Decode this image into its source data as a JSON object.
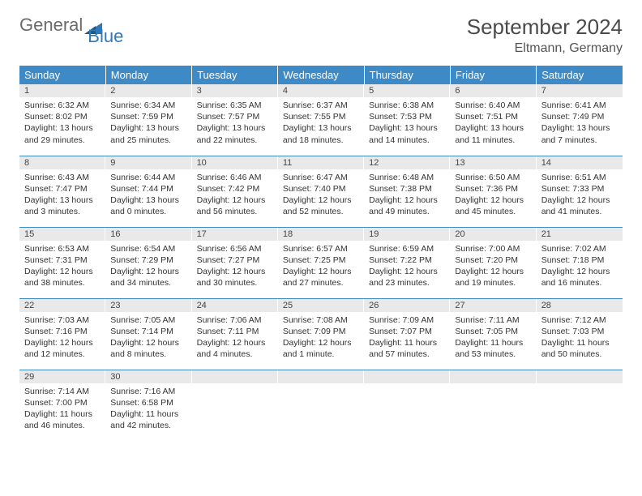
{
  "logo": {
    "part1": "General",
    "part2": "Blue"
  },
  "header": {
    "month_title": "September 2024",
    "location": "Eltmann, Germany"
  },
  "colors": {
    "header_bg": "#3e8ac6",
    "header_text": "#ffffff",
    "daynum_bg": "#e9e9e9",
    "row_divider": "#3e8ac6",
    "logo_blue": "#2f79b9",
    "logo_gray": "#6b6b6b",
    "body_text": "#333333",
    "page_bg": "#ffffff"
  },
  "typography": {
    "day_header_fontsize": 13,
    "daynum_fontsize": 11,
    "body_fontsize": 10.5,
    "title_fontsize": 26,
    "location_fontsize": 16
  },
  "day_headers": [
    "Sunday",
    "Monday",
    "Tuesday",
    "Wednesday",
    "Thursday",
    "Friday",
    "Saturday"
  ],
  "weeks": [
    [
      {
        "n": "1",
        "sr": "Sunrise: 6:32 AM",
        "ss": "Sunset: 8:02 PM",
        "dl": "Daylight: 13 hours and 29 minutes."
      },
      {
        "n": "2",
        "sr": "Sunrise: 6:34 AM",
        "ss": "Sunset: 7:59 PM",
        "dl": "Daylight: 13 hours and 25 minutes."
      },
      {
        "n": "3",
        "sr": "Sunrise: 6:35 AM",
        "ss": "Sunset: 7:57 PM",
        "dl": "Daylight: 13 hours and 22 minutes."
      },
      {
        "n": "4",
        "sr": "Sunrise: 6:37 AM",
        "ss": "Sunset: 7:55 PM",
        "dl": "Daylight: 13 hours and 18 minutes."
      },
      {
        "n": "5",
        "sr": "Sunrise: 6:38 AM",
        "ss": "Sunset: 7:53 PM",
        "dl": "Daylight: 13 hours and 14 minutes."
      },
      {
        "n": "6",
        "sr": "Sunrise: 6:40 AM",
        "ss": "Sunset: 7:51 PM",
        "dl": "Daylight: 13 hours and 11 minutes."
      },
      {
        "n": "7",
        "sr": "Sunrise: 6:41 AM",
        "ss": "Sunset: 7:49 PM",
        "dl": "Daylight: 13 hours and 7 minutes."
      }
    ],
    [
      {
        "n": "8",
        "sr": "Sunrise: 6:43 AM",
        "ss": "Sunset: 7:47 PM",
        "dl": "Daylight: 13 hours and 3 minutes."
      },
      {
        "n": "9",
        "sr": "Sunrise: 6:44 AM",
        "ss": "Sunset: 7:44 PM",
        "dl": "Daylight: 13 hours and 0 minutes."
      },
      {
        "n": "10",
        "sr": "Sunrise: 6:46 AM",
        "ss": "Sunset: 7:42 PM",
        "dl": "Daylight: 12 hours and 56 minutes."
      },
      {
        "n": "11",
        "sr": "Sunrise: 6:47 AM",
        "ss": "Sunset: 7:40 PM",
        "dl": "Daylight: 12 hours and 52 minutes."
      },
      {
        "n": "12",
        "sr": "Sunrise: 6:48 AM",
        "ss": "Sunset: 7:38 PM",
        "dl": "Daylight: 12 hours and 49 minutes."
      },
      {
        "n": "13",
        "sr": "Sunrise: 6:50 AM",
        "ss": "Sunset: 7:36 PM",
        "dl": "Daylight: 12 hours and 45 minutes."
      },
      {
        "n": "14",
        "sr": "Sunrise: 6:51 AM",
        "ss": "Sunset: 7:33 PM",
        "dl": "Daylight: 12 hours and 41 minutes."
      }
    ],
    [
      {
        "n": "15",
        "sr": "Sunrise: 6:53 AM",
        "ss": "Sunset: 7:31 PM",
        "dl": "Daylight: 12 hours and 38 minutes."
      },
      {
        "n": "16",
        "sr": "Sunrise: 6:54 AM",
        "ss": "Sunset: 7:29 PM",
        "dl": "Daylight: 12 hours and 34 minutes."
      },
      {
        "n": "17",
        "sr": "Sunrise: 6:56 AM",
        "ss": "Sunset: 7:27 PM",
        "dl": "Daylight: 12 hours and 30 minutes."
      },
      {
        "n": "18",
        "sr": "Sunrise: 6:57 AM",
        "ss": "Sunset: 7:25 PM",
        "dl": "Daylight: 12 hours and 27 minutes."
      },
      {
        "n": "19",
        "sr": "Sunrise: 6:59 AM",
        "ss": "Sunset: 7:22 PM",
        "dl": "Daylight: 12 hours and 23 minutes."
      },
      {
        "n": "20",
        "sr": "Sunrise: 7:00 AM",
        "ss": "Sunset: 7:20 PM",
        "dl": "Daylight: 12 hours and 19 minutes."
      },
      {
        "n": "21",
        "sr": "Sunrise: 7:02 AM",
        "ss": "Sunset: 7:18 PM",
        "dl": "Daylight: 12 hours and 16 minutes."
      }
    ],
    [
      {
        "n": "22",
        "sr": "Sunrise: 7:03 AM",
        "ss": "Sunset: 7:16 PM",
        "dl": "Daylight: 12 hours and 12 minutes."
      },
      {
        "n": "23",
        "sr": "Sunrise: 7:05 AM",
        "ss": "Sunset: 7:14 PM",
        "dl": "Daylight: 12 hours and 8 minutes."
      },
      {
        "n": "24",
        "sr": "Sunrise: 7:06 AM",
        "ss": "Sunset: 7:11 PM",
        "dl": "Daylight: 12 hours and 4 minutes."
      },
      {
        "n": "25",
        "sr": "Sunrise: 7:08 AM",
        "ss": "Sunset: 7:09 PM",
        "dl": "Daylight: 12 hours and 1 minute."
      },
      {
        "n": "26",
        "sr": "Sunrise: 7:09 AM",
        "ss": "Sunset: 7:07 PM",
        "dl": "Daylight: 11 hours and 57 minutes."
      },
      {
        "n": "27",
        "sr": "Sunrise: 7:11 AM",
        "ss": "Sunset: 7:05 PM",
        "dl": "Daylight: 11 hours and 53 minutes."
      },
      {
        "n": "28",
        "sr": "Sunrise: 7:12 AM",
        "ss": "Sunset: 7:03 PM",
        "dl": "Daylight: 11 hours and 50 minutes."
      }
    ],
    [
      {
        "n": "29",
        "sr": "Sunrise: 7:14 AM",
        "ss": "Sunset: 7:00 PM",
        "dl": "Daylight: 11 hours and 46 minutes."
      },
      {
        "n": "30",
        "sr": "Sunrise: 7:16 AM",
        "ss": "Sunset: 6:58 PM",
        "dl": "Daylight: 11 hours and 42 minutes."
      },
      null,
      null,
      null,
      null,
      null
    ]
  ]
}
